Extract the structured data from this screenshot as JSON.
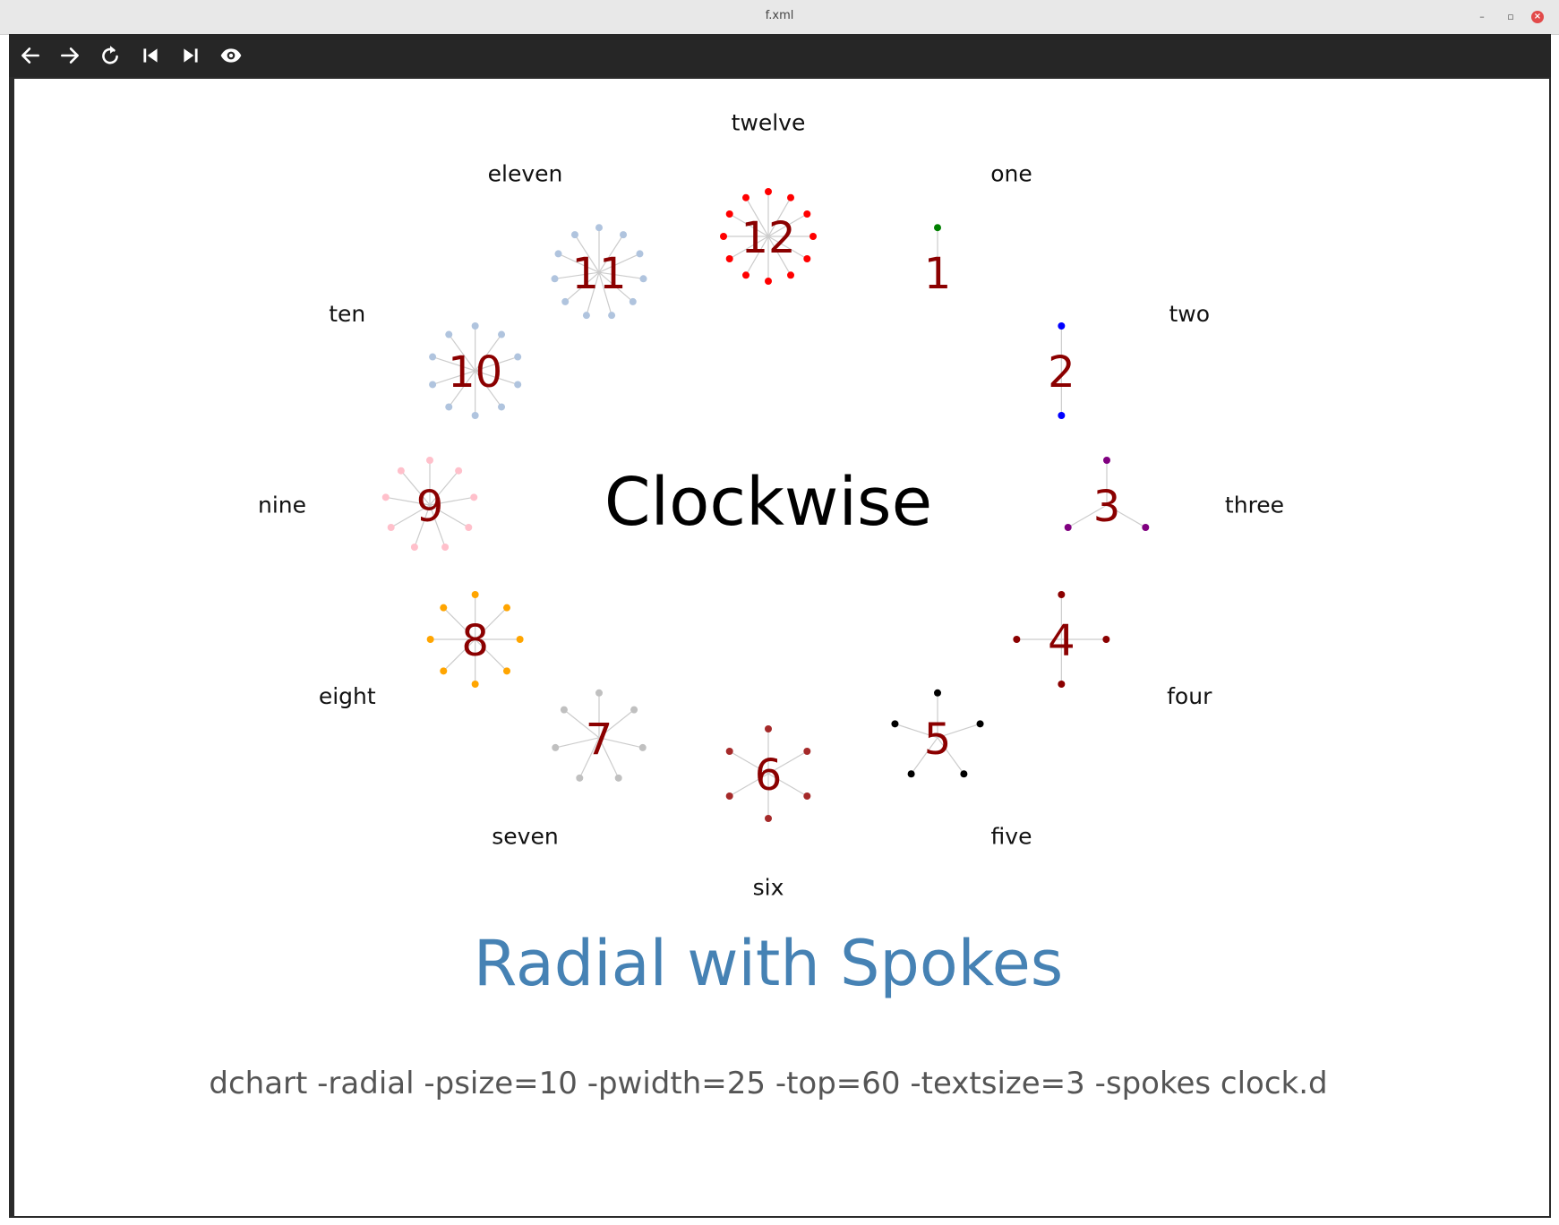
{
  "window": {
    "title": "f.xml",
    "minimize_glyph": "–",
    "restore_glyph": "▫",
    "close_glyph": "×"
  },
  "toolbar": {
    "icons": [
      "back-arrow-icon",
      "forward-arrow-icon",
      "reload-icon",
      "first-page-icon",
      "last-page-icon",
      "eye-icon"
    ]
  },
  "colors": {
    "number_text": "#8b0000",
    "label_text": "#111111",
    "heading": "#4682b4",
    "command": "#555555",
    "spoke_line": "#cccccc"
  },
  "chart_data": {
    "type": "radial",
    "center_label": "Clockwise",
    "title": "Radial with Spokes",
    "caption": "dchart -radial -psize=10 -pwidth=25 -top=60 -textsize=3 -spokes clock.d",
    "items": [
      {
        "label": "one",
        "value": 1,
        "spokes": 1,
        "color": "#008000"
      },
      {
        "label": "two",
        "value": 2,
        "spokes": 2,
        "color": "#0000ff"
      },
      {
        "label": "three",
        "value": 3,
        "spokes": 3,
        "color": "#800080"
      },
      {
        "label": "four",
        "value": 4,
        "spokes": 4,
        "color": "#8b0000"
      },
      {
        "label": "five",
        "value": 5,
        "spokes": 5,
        "color": "#000000"
      },
      {
        "label": "six",
        "value": 6,
        "spokes": 6,
        "color": "#a52a2a"
      },
      {
        "label": "seven",
        "value": 7,
        "spokes": 7,
        "color": "#c0c0c0"
      },
      {
        "label": "eight",
        "value": 8,
        "spokes": 8,
        "color": "#ffa500"
      },
      {
        "label": "nine",
        "value": 9,
        "spokes": 9,
        "color": "#ffc0cb"
      },
      {
        "label": "ten",
        "value": 10,
        "spokes": 10,
        "color": "#b0c4de"
      },
      {
        "label": "eleven",
        "value": 11,
        "spokes": 11,
        "color": "#b0c4de"
      },
      {
        "label": "twelve",
        "value": 12,
        "spokes": 12,
        "color": "#ff0000"
      }
    ]
  }
}
